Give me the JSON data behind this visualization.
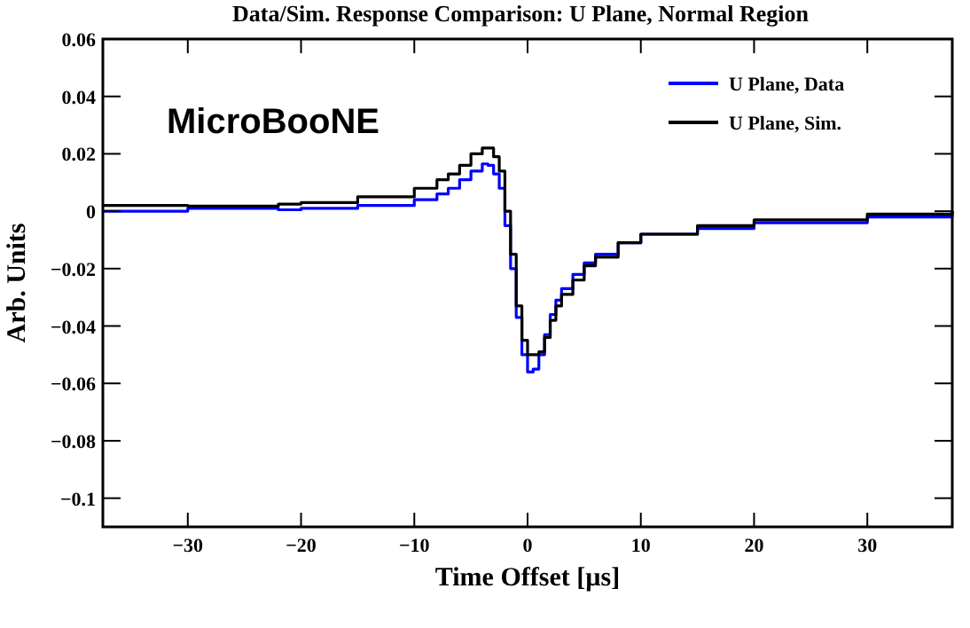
{
  "chart_data": {
    "type": "step",
    "title": "Data/Sim. Response Comparison:  U Plane, Normal Region",
    "xlabel": "Time Offset [µs]",
    "ylabel": "Arb. Units",
    "annotations": [
      "MicroBooNE"
    ],
    "x": [
      -37.5,
      -30,
      -22,
      -20,
      -15,
      -10,
      -8,
      -7,
      -6,
      -5,
      -4,
      -3.5,
      -3,
      -2.5,
      -2,
      -1.5,
      -1,
      -0.5,
      0,
      0.5,
      1,
      1.5,
      2,
      2.5,
      3,
      4,
      5,
      6,
      8,
      10,
      15,
      20,
      30,
      37.5
    ],
    "series": [
      {
        "name": "U Plane, Data",
        "color": "#0000ff",
        "values": [
          0,
          0.001,
          0.0005,
          0.001,
          0.002,
          0.004,
          0.006,
          0.008,
          0.011,
          0.014,
          0.0165,
          0.016,
          0.013,
          0.008,
          -0.005,
          -0.02,
          -0.037,
          -0.05,
          -0.056,
          -0.055,
          -0.05,
          -0.043,
          -0.036,
          -0.031,
          -0.027,
          -0.022,
          -0.018,
          -0.015,
          -0.011,
          -0.008,
          -0.006,
          -0.004,
          -0.002,
          0
        ]
      },
      {
        "name": "U Plane, Sim.",
        "color": "#000000",
        "values": [
          0.002,
          0.0018,
          0.0025,
          0.003,
          0.005,
          0.008,
          0.011,
          0.013,
          0.016,
          0.02,
          0.022,
          0.022,
          0.019,
          0.014,
          0,
          -0.015,
          -0.033,
          -0.045,
          -0.05,
          -0.05,
          -0.049,
          -0.044,
          -0.038,
          -0.033,
          -0.029,
          -0.024,
          -0.019,
          -0.016,
          -0.011,
          -0.008,
          -0.005,
          -0.003,
          -0.001,
          0
        ]
      }
    ],
    "xlim": [
      -37.5,
      37.5
    ],
    "ylim": [
      -0.11,
      0.06
    ],
    "xticks": [
      {
        "value": -30,
        "label": "−30"
      },
      {
        "value": -20,
        "label": "−20"
      },
      {
        "value": -10,
        "label": "−10"
      },
      0,
      10,
      20,
      30
    ],
    "yticks": [
      {
        "value": -0.1,
        "label": "−0.1"
      },
      {
        "value": -0.08,
        "label": "−0.08"
      },
      {
        "value": -0.06,
        "label": "−0.06"
      },
      {
        "value": -0.04,
        "label": "−0.04"
      },
      {
        "value": -0.02,
        "label": "−0.02"
      },
      0,
      0.02,
      0.04,
      0.06
    ],
    "legend": "top right",
    "grid": false
  }
}
